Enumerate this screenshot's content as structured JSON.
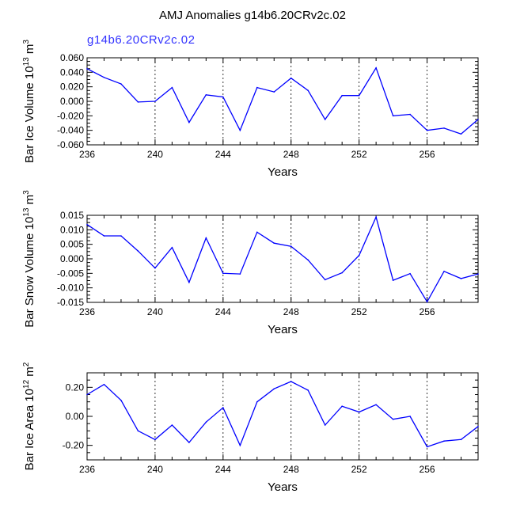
{
  "title": "AMJ Anomalies g14b6.20CRv2c.02",
  "case_label": "g14b6.20CRv2c.02",
  "colors": {
    "series": "#0000ff",
    "case_label": "#3333ff",
    "axis": "#000000"
  },
  "chart_data": [
    {
      "type": "line",
      "name": "bar-ice-volume",
      "ylabel": "Bar Ice Volume 10^13 m^3",
      "ylabel_parts": {
        "base": "Bar Ice Volume 10",
        "exp": "13",
        "unit": " m",
        "unit_exp": "3"
      },
      "xlabel": "Years",
      "xlim": [
        236,
        259
      ],
      "ylim": [
        -0.06,
        0.06
      ],
      "x_ticks": [
        236,
        240,
        244,
        248,
        252,
        256
      ],
      "x_tick_labels": [
        "236",
        "240",
        "244",
        "248",
        "252",
        "256"
      ],
      "y_ticks": [
        -0.06,
        -0.04,
        -0.02,
        0,
        0.02,
        0.04,
        0.06
      ],
      "y_tick_labels": [
        "-0.060",
        "-0.040",
        "-0.020",
        "0.000",
        "0.020",
        "0.040",
        "0.060"
      ],
      "grid_x": [
        240,
        244,
        248,
        252,
        256
      ],
      "x": [
        236,
        237,
        238,
        239,
        240,
        241,
        242,
        243,
        244,
        245,
        246,
        247,
        248,
        249,
        250,
        251,
        252,
        253,
        254,
        255,
        256,
        257,
        258,
        259
      ],
      "values": [
        0.045,
        0.033,
        0.024,
        -0.001,
        0.0,
        0.019,
        -0.029,
        0.009,
        0.006,
        -0.04,
        0.019,
        0.013,
        0.032,
        0.015,
        -0.025,
        0.008,
        0.008,
        0.046,
        -0.02,
        -0.018,
        -0.04,
        -0.037,
        -0.045,
        -0.025
      ]
    },
    {
      "type": "line",
      "name": "bar-snow-volume",
      "ylabel": "Bar Snow Volume 10^13 m^3",
      "ylabel_parts": {
        "base": "Bar Snow Volume 10",
        "exp": "13",
        "unit": " m",
        "unit_exp": "3"
      },
      "xlabel": "Years",
      "xlim": [
        236,
        259
      ],
      "ylim": [
        -0.015,
        0.015
      ],
      "x_ticks": [
        236,
        240,
        244,
        248,
        252,
        256
      ],
      "x_tick_labels": [
        "236",
        "240",
        "244",
        "248",
        "252",
        "256"
      ],
      "y_ticks": [
        -0.015,
        -0.01,
        -0.005,
        0,
        0.005,
        0.01,
        0.015
      ],
      "y_tick_labels": [
        "-0.015",
        "-0.010",
        "-0.005",
        "0.000",
        "0.005",
        "0.010",
        "0.015"
      ],
      "grid_x": [
        240,
        244,
        248,
        252,
        256
      ],
      "x": [
        236,
        237,
        238,
        239,
        240,
        241,
        242,
        243,
        244,
        245,
        246,
        247,
        248,
        249,
        250,
        251,
        252,
        253,
        254,
        255,
        256,
        257,
        258,
        259
      ],
      "values": [
        0.0118,
        0.0079,
        0.0079,
        0.0027,
        -0.0032,
        0.0039,
        -0.0081,
        0.0072,
        -0.005,
        -0.0052,
        0.0092,
        0.0054,
        0.0043,
        -0.0004,
        -0.0072,
        -0.0048,
        0.0012,
        0.0144,
        -0.0074,
        -0.0051,
        -0.0148,
        -0.0043,
        -0.0068,
        -0.0052
      ]
    },
    {
      "type": "line",
      "name": "bar-ice-area",
      "ylabel": "Bar Ice Area 10^12 m^2",
      "ylabel_parts": {
        "base": "Bar Ice Area 10",
        "exp": "12",
        "unit": " m",
        "unit_exp": "2"
      },
      "xlabel": "Years",
      "xlim": [
        236,
        259
      ],
      "ylim": [
        -0.3,
        0.3
      ],
      "x_ticks": [
        236,
        240,
        244,
        248,
        252,
        256
      ],
      "x_tick_labels": [
        "236",
        "240",
        "244",
        "248",
        "252",
        "256"
      ],
      "y_ticks": [
        -0.2,
        0,
        0.2
      ],
      "y_tick_labels": [
        "-0.20",
        "0.00",
        "0.20"
      ],
      "grid_x": [
        240,
        244,
        248,
        252,
        256
      ],
      "x": [
        236,
        237,
        238,
        239,
        240,
        241,
        242,
        243,
        244,
        245,
        246,
        247,
        248,
        249,
        250,
        251,
        252,
        253,
        254,
        255,
        256,
        257,
        258,
        259
      ],
      "values": [
        0.15,
        0.22,
        0.11,
        -0.1,
        -0.16,
        -0.06,
        -0.18,
        -0.04,
        0.06,
        -0.2,
        0.1,
        0.19,
        0.24,
        0.18,
        -0.06,
        0.07,
        0.03,
        0.08,
        -0.02,
        0.0,
        -0.21,
        -0.17,
        -0.16,
        -0.07
      ]
    }
  ]
}
